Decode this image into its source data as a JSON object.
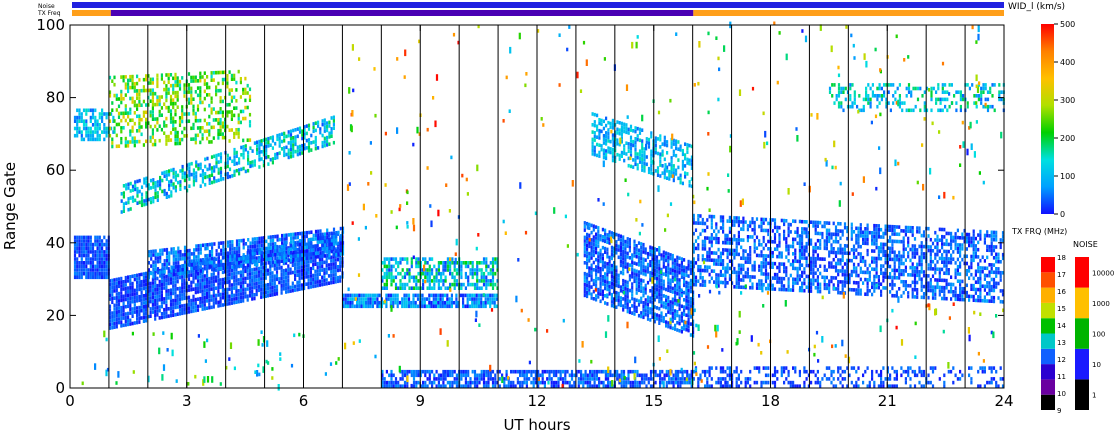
{
  "chart_data": {
    "type": "heatmap",
    "xlabel": "UT hours",
    "ylabel": "Range Gate",
    "xlim": [
      0,
      24
    ],
    "ylim": [
      0,
      100
    ],
    "xticks": [
      0,
      3,
      6,
      9,
      12,
      15,
      18,
      21,
      24
    ],
    "yticks": [
      0,
      20,
      40,
      60,
      80,
      100
    ],
    "vertical_lines_ut": [
      1,
      2,
      3,
      4,
      5,
      6,
      7,
      8,
      9,
      10,
      11,
      12,
      13,
      14,
      15,
      16,
      17,
      18,
      19,
      20,
      21,
      22,
      23
    ],
    "status_bars": {
      "noise_label": "Noise",
      "txfreq_label": "TX Freq",
      "noise_color": "#2020e0",
      "txfreq_segments": [
        {
          "from": 0,
          "to": 1,
          "color": "#ff9f1a"
        },
        {
          "from": 1,
          "to": 16,
          "color": "#4a00b4"
        },
        {
          "from": 16,
          "to": 24,
          "color": "#ff9f1a"
        }
      ]
    },
    "colorbar_main": {
      "title": "WID_l (km/s)",
      "min": 0,
      "max": 500,
      "ticks": [
        0,
        100,
        200,
        300,
        400,
        500
      ],
      "stops": [
        "#1010ff",
        "#00a0ff",
        "#00e0e0",
        "#00d000",
        "#b0e000",
        "#ffc000",
        "#ff8000",
        "#ff0000"
      ]
    },
    "colorbar_txfreq": {
      "title": "TX FRQ (MHz)",
      "ticks": [
        "9",
        "10",
        "11",
        "12",
        "13",
        "14",
        "15",
        "16",
        "17",
        "18"
      ],
      "colors": [
        "#000000",
        "#6a00a0",
        "#2a00d0",
        "#1060ff",
        "#00c8c8",
        "#00c000",
        "#c0e000",
        "#ffb000",
        "#ff5000",
        "#ff0000"
      ]
    },
    "colorbar_noise": {
      "title": "NOISE",
      "ticks": [
        "1",
        "10",
        "100",
        "1000",
        "10000"
      ],
      "colors": [
        "#000000",
        "#1a1aff",
        "#00b400",
        "#ffc000",
        "#ff0000"
      ]
    },
    "bands": [
      {
        "t0": 0.1,
        "t1": 1.0,
        "g0": 30,
        "g1": 42,
        "slope": 0,
        "density": 0.92,
        "c0": 0,
        "c1": 60
      },
      {
        "t0": 0.1,
        "t1": 1.1,
        "g0": 68,
        "g1": 77,
        "slope": 0,
        "density": 0.6,
        "c0": 40,
        "c1": 160
      },
      {
        "t0": 1.0,
        "t1": 7.0,
        "g0": 16,
        "g1": 30,
        "slope": 2.2,
        "density": 0.85,
        "c0": 0,
        "c1": 60
      },
      {
        "t0": 2.0,
        "t1": 7.0,
        "g0": 30,
        "g1": 38,
        "slope": 1.3,
        "density": 0.75,
        "c0": 0,
        "c1": 90
      },
      {
        "t0": 1.3,
        "t1": 6.8,
        "g0": 48,
        "g1": 56,
        "slope": 3.5,
        "density": 0.55,
        "c0": 30,
        "c1": 200
      },
      {
        "t0": 1.0,
        "t1": 4.6,
        "g0": 66,
        "g1": 86,
        "slope": 0.5,
        "density": 0.4,
        "c0": 140,
        "c1": 340
      },
      {
        "t0": 7.0,
        "t1": 11.0,
        "g0": 22,
        "g1": 26,
        "slope": 0,
        "density": 0.85,
        "c0": 0,
        "c1": 120
      },
      {
        "t0": 8.0,
        "t1": 11.0,
        "g0": 27,
        "g1": 36,
        "slope": 0,
        "density": 0.6,
        "c0": 20,
        "c1": 220
      },
      {
        "t0": 8.0,
        "t1": 16.0,
        "g0": 0,
        "g1": 5,
        "slope": 0,
        "density": 0.7,
        "c0": 0,
        "c1": 70
      },
      {
        "t0": 13.2,
        "t1": 16.0,
        "g0": 25,
        "g1": 46,
        "slope": -4.0,
        "density": 0.75,
        "c0": 0,
        "c1": 80
      },
      {
        "t0": 13.4,
        "t1": 16.0,
        "g0": 64,
        "g1": 76,
        "slope": -3.5,
        "density": 0.55,
        "c0": 40,
        "c1": 160
      },
      {
        "t0": 16.0,
        "t1": 24.0,
        "g0": 28,
        "g1": 48,
        "slope": -0.6,
        "density": 0.55,
        "c0": 0,
        "c1": 80
      },
      {
        "t0": 16.0,
        "t1": 24.0,
        "g0": 0,
        "g1": 6,
        "slope": 0,
        "density": 0.35,
        "c0": 0,
        "c1": 60
      },
      {
        "t0": 19.5,
        "t1": 24.0,
        "g0": 76,
        "g1": 84,
        "slope": 0,
        "density": 0.35,
        "c0": 40,
        "c1": 200
      }
    ],
    "scatter": [
      {
        "t0": 7.0,
        "t1": 16.5,
        "g0": 0,
        "g1": 100,
        "count": 220,
        "c0": 0,
        "c1": 500
      },
      {
        "t0": 16.0,
        "t1": 24.0,
        "g0": 50,
        "g1": 100,
        "count": 110,
        "c0": 0,
        "c1": 500
      },
      {
        "t0": 0.0,
        "t1": 7.0,
        "g0": 0,
        "g1": 15,
        "count": 60,
        "c0": 0,
        "c1": 300
      },
      {
        "t0": 16.0,
        "t1": 24.0,
        "g0": 6,
        "g1": 28,
        "count": 70,
        "c0": 0,
        "c1": 500
      }
    ]
  }
}
